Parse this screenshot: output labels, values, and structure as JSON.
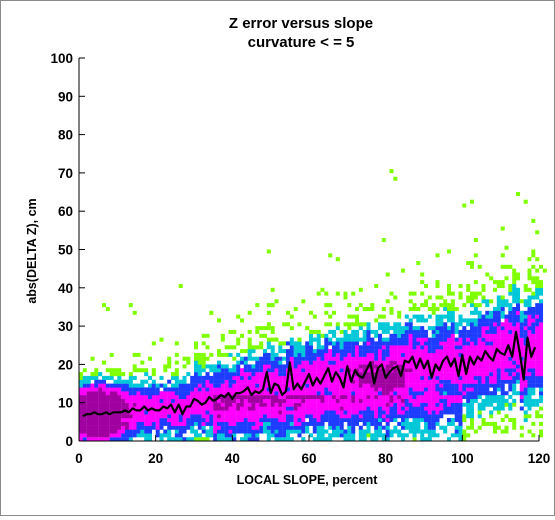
{
  "chart_data": {
    "type": "heatmap",
    "title": "Z error versus slope",
    "subtitle": "curvature < = 5",
    "xlabel": "LOCAL SLOPE, percent",
    "ylabel": "abs(DELTA Z), cm",
    "xlim": [
      0,
      120
    ],
    "ylim": [
      0,
      100
    ],
    "xticks": [
      "0",
      "20",
      "40",
      "60",
      "80",
      "100",
      "120"
    ],
    "yticks": [
      "0",
      "10",
      "20",
      "30",
      "40",
      "50",
      "60",
      "70",
      "80",
      "90",
      "100"
    ],
    "grid": false,
    "density_colors": {
      "low": "#80ff00",
      "low_mid": "#00c8d8",
      "mid": "#1e3cff",
      "high": "#ff00ff",
      "peak": "#a000a0"
    },
    "series": [
      {
        "name": "",
        "type": "line",
        "color": "#000000",
        "x": [
          1,
          2,
          3,
          4,
          5,
          6,
          7,
          8,
          9,
          10,
          11,
          12,
          13,
          14,
          15,
          16,
          17,
          18,
          19,
          20,
          21,
          22,
          23,
          24,
          25,
          26,
          27,
          28,
          29,
          30,
          31,
          32,
          33,
          34,
          35,
          36,
          37,
          38,
          39,
          40,
          41,
          42,
          43,
          44,
          45,
          46,
          47,
          48,
          49,
          50,
          51,
          52,
          53,
          54,
          55,
          56,
          57,
          58,
          59,
          60,
          61,
          62,
          63,
          64,
          65,
          66,
          67,
          68,
          69,
          70,
          71,
          72,
          73,
          74,
          75,
          76,
          77,
          78,
          79,
          80,
          81,
          82,
          83,
          84,
          85,
          86,
          87,
          88,
          89,
          90,
          91,
          92,
          93,
          94,
          95,
          96,
          97,
          98,
          99,
          100,
          101,
          102,
          103,
          104,
          105,
          106,
          107,
          108,
          109,
          110,
          111,
          112,
          113,
          114,
          115,
          116,
          117,
          118,
          119
        ],
        "y": [
          6.5,
          7,
          7,
          7.5,
          7,
          7,
          7.5,
          7,
          7.5,
          7.5,
          7.5,
          8,
          7.5,
          8.5,
          8,
          8,
          9,
          8,
          8.5,
          8,
          8,
          9,
          8.5,
          9.5,
          7.5,
          9.5,
          7,
          9,
          9,
          11,
          10.5,
          9.5,
          10,
          11.5,
          10.5,
          11,
          12,
          11.5,
          12.5,
          11,
          12.5,
          12.5,
          13,
          14,
          12,
          13,
          12.5,
          13.5,
          18,
          12.5,
          15,
          14.5,
          12,
          13,
          20.5,
          13.5,
          15,
          13.5,
          15.5,
          17.5,
          14.5,
          16.5,
          15,
          17,
          19,
          15.5,
          18,
          16.5,
          14,
          19.5,
          15.5,
          18.5,
          17,
          16.5,
          18.5,
          20.5,
          15,
          19,
          20,
          16.5,
          18,
          19,
          19.5,
          17,
          21,
          20.5,
          22,
          19,
          21.5,
          19,
          21,
          16.5,
          20,
          18.5,
          21,
          22,
          19.5,
          21.5,
          17,
          22.5,
          17.5,
          22,
          20,
          22,
          21,
          23.5,
          22,
          21,
          24,
          23,
          22.5,
          25,
          22,
          28.5,
          23,
          16,
          27,
          22,
          24.5
        ]
      }
    ],
    "outliers": [
      {
        "x": 81,
        "y": 70
      },
      {
        "x": 82,
        "y": 68
      },
      {
        "x": 114,
        "y": 64
      },
      {
        "x": 116,
        "y": 62
      },
      {
        "x": 100,
        "y": 61
      },
      {
        "x": 102,
        "y": 62
      },
      {
        "x": 79,
        "y": 52
      },
      {
        "x": 49,
        "y": 49
      },
      {
        "x": 65,
        "y": 48
      },
      {
        "x": 118,
        "y": 57
      },
      {
        "x": 121,
        "y": 44
      },
      {
        "x": 26,
        "y": 40
      },
      {
        "x": 50,
        "y": 39
      },
      {
        "x": 63,
        "y": 39
      },
      {
        "x": 6,
        "y": 35
      },
      {
        "x": 7,
        "y": 34
      },
      {
        "x": 13,
        "y": 35
      },
      {
        "x": 14,
        "y": 33
      }
    ]
  }
}
